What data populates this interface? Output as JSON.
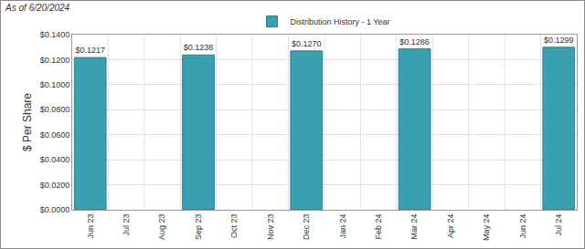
{
  "chart_data": {
    "type": "bar",
    "title": "As of 6/20/2024",
    "y_label": "$ Per Share",
    "categories": [
      "Jun 23",
      "Jul 23",
      "Aug 23",
      "Sep 23",
      "Oct 23",
      "Nov 23",
      "Dec 23",
      "Jan 24",
      "Feb 24",
      "Mar 24",
      "Apr 24",
      "May 24",
      "Jun 24",
      "Jul 24"
    ],
    "series": [
      {
        "name": "Distribution History - 1 Year",
        "color": "#3a9fb0",
        "values": [
          0.1217,
          null,
          null,
          0.1238,
          null,
          null,
          0.127,
          null,
          null,
          0.1286,
          null,
          null,
          null,
          0.1299
        ],
        "value_labels": [
          "$0.1217",
          null,
          null,
          "$0.1238",
          null,
          null,
          "$0.1270",
          null,
          null,
          "$0.1286",
          null,
          null,
          null,
          "$0.1299"
        ]
      }
    ],
    "ylim": [
      0,
      0.14
    ],
    "yticks": [
      {
        "value": 0,
        "label": "$0.0000"
      },
      {
        "value": 0.02,
        "label": "$0.0200"
      },
      {
        "value": 0.04,
        "label": "$0.0400"
      },
      {
        "value": 0.06,
        "label": "$0.0600"
      },
      {
        "value": 0.08,
        "label": "$0.0800"
      },
      {
        "value": 0.1,
        "label": "$0.1000"
      },
      {
        "value": 0.12,
        "label": "$0.1200"
      },
      {
        "value": 0.14,
        "label": "$0.1400"
      }
    ],
    "grid": true,
    "legend": "top",
    "data_labels": true
  }
}
